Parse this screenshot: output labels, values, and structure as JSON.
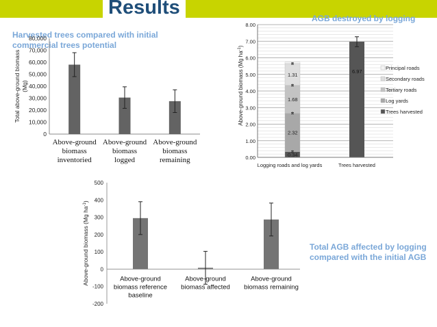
{
  "header": {
    "title": "Results"
  },
  "captions": {
    "harvested": "Harvested trees compared with initial commercial trees potential",
    "destroyed": "AGB destroyed by  logging",
    "affected": "Total AGB affected by logging compared with the initial AGB"
  },
  "chart_data": [
    {
      "type": "bar",
      "ylabel": "Total above-ground biomass (Mg)",
      "ylim": [
        0,
        80000
      ],
      "yticks": [
        "0",
        "10,000",
        "20,000",
        "30,000",
        "40,000",
        "50,000",
        "60,000",
        "70,000",
        "80,000"
      ],
      "categories": [
        "Above-ground biomass inventoried",
        "Above-ground biomass logged",
        "Above-ground biomass remaining"
      ],
      "values": [
        58000,
        30500,
        27500
      ],
      "errors": [
        10000,
        9000,
        9500
      ],
      "grid": false,
      "color": "#636363"
    },
    {
      "type": "bar",
      "stacked": true,
      "ylabel": "Above-ground biomass (Mg ha-1)",
      "ylim": [
        0,
        8
      ],
      "yticks": [
        "0.00",
        "1.00",
        "2.00",
        "3.00",
        "4.00",
        "5.00",
        "6.00",
        "7.00",
        "8.00"
      ],
      "categories": [
        "Logging roads and log yards",
        "Trees harvested"
      ],
      "grid": true,
      "legend": "right",
      "series": [
        {
          "name": "Principal roads",
          "values": [
            0.09,
            0
          ],
          "label": "",
          "color": "#f3f3f3"
        },
        {
          "name": "Secondary roads",
          "values": [
            1.31,
            0
          ],
          "label": "1.31",
          "color": "#dedede"
        },
        {
          "name": "Tertiary roads",
          "values": [
            1.68,
            0
          ],
          "label": "1.68",
          "color": "#c3c3c3"
        },
        {
          "name": "Log yards",
          "values": [
            2.32,
            0
          ],
          "label": "2.32",
          "color": "#a8a8a8"
        },
        {
          "name": "Trees harvested",
          "values": [
            0.34,
            6.97
          ],
          "label": "0.34",
          "color": "#555555"
        }
      ],
      "trees_label": "6.97",
      "error_markers": [
        0.34,
        2.66,
        4.34,
        5.65
      ],
      "trees_error": 0.3
    },
    {
      "type": "bar",
      "ylabel": "Above-ground biomass (Mg ha-1)",
      "ylim": [
        -200,
        500
      ],
      "yticks": [
        "-200",
        "-100",
        "0",
        "100",
        "200",
        "300",
        "400",
        "500"
      ],
      "categories": [
        "Above-ground biomass reference baseline",
        "Above-ground biomass affected",
        "Above-ground biomass remaining"
      ],
      "category_lines": [
        [
          "Above-ground",
          "biomass reference",
          "baseline"
        ],
        [
          "Above-ground",
          "biomass affected"
        ],
        [
          "Above-ground",
          "biomass remaining"
        ]
      ],
      "values": [
        295,
        8,
        287
      ],
      "errors": [
        95,
        95,
        95
      ],
      "grid": false,
      "color": "#747474"
    }
  ]
}
